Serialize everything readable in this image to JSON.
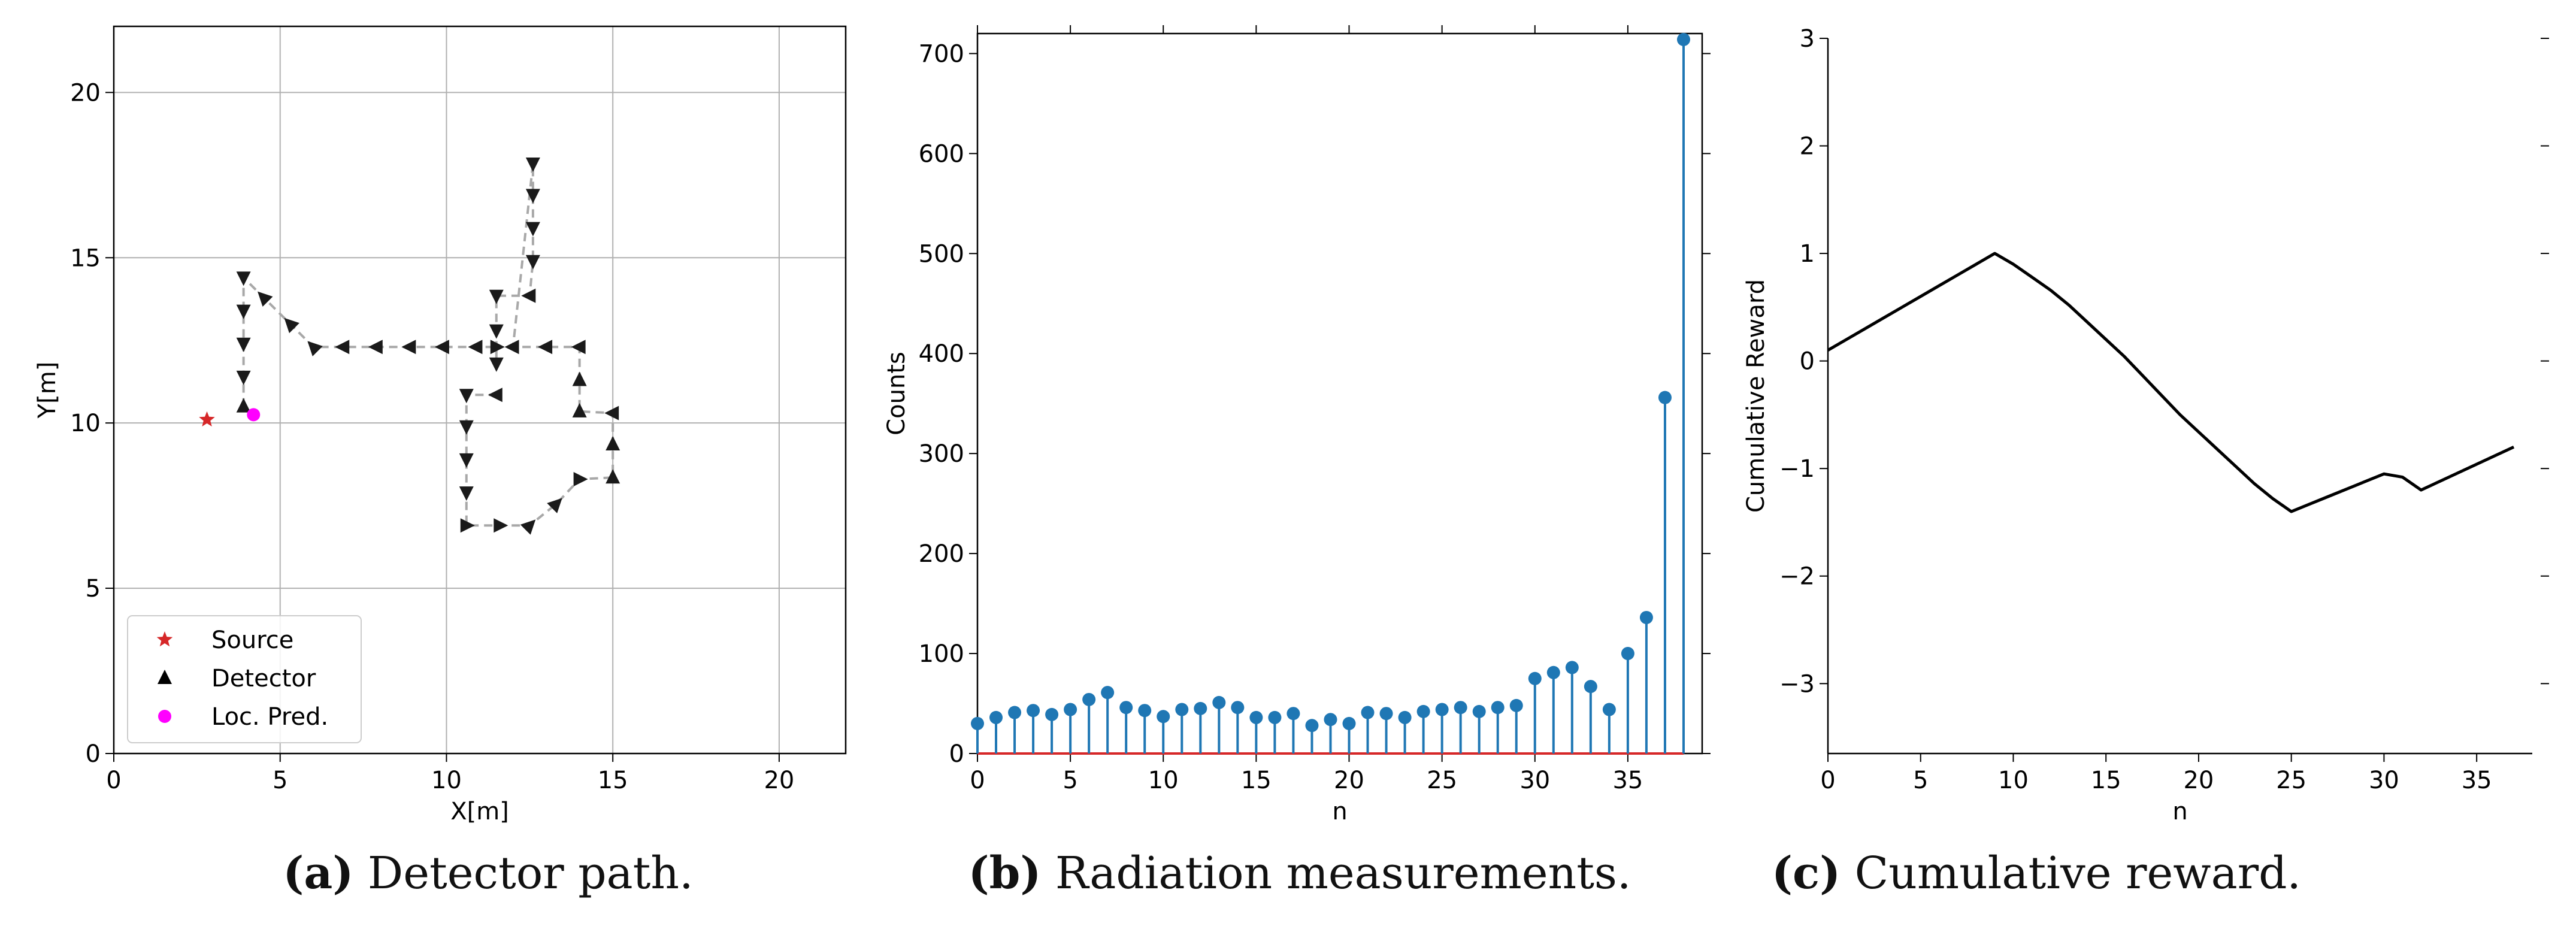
{
  "chart_data": [
    {
      "type": "scatter",
      "title": "",
      "xlabel": "X[m]",
      "ylabel": "Y[m]",
      "xlim": [
        0,
        22
      ],
      "ylim": [
        0,
        22
      ],
      "xticks": [
        0,
        5,
        10,
        15,
        20
      ],
      "yticks": [
        0,
        5,
        10,
        15,
        20
      ],
      "grid": true,
      "legend": {
        "placement": "lower-left",
        "entries": [
          {
            "label": "Source",
            "marker": "star",
            "color": "#d62728"
          },
          {
            "label": "Detector",
            "marker": "triangle",
            "color": "#000000"
          },
          {
            "label": "Loc. Pred.",
            "marker": "circle",
            "color": "#ff00ff"
          }
        ]
      },
      "source": {
        "x": 2.8,
        "y": 10.1
      },
      "loc_pred": {
        "x": 4.2,
        "y": 10.25
      },
      "detector_path": [
        {
          "x": 3.9,
          "y": 10.5,
          "dir": "up"
        },
        {
          "x": 3.9,
          "y": 11.4,
          "dir": "down"
        },
        {
          "x": 3.9,
          "y": 12.4,
          "dir": "down"
        },
        {
          "x": 3.9,
          "y": 13.4,
          "dir": "down"
        },
        {
          "x": 3.9,
          "y": 14.4,
          "dir": "down"
        },
        {
          "x": 4.5,
          "y": 13.8,
          "dir": "up-left"
        },
        {
          "x": 5.3,
          "y": 13.0,
          "dir": "up-left"
        },
        {
          "x": 6.0,
          "y": 12.3,
          "dir": "up-left"
        },
        {
          "x": 6.9,
          "y": 12.3,
          "dir": "left"
        },
        {
          "x": 7.9,
          "y": 12.3,
          "dir": "left"
        },
        {
          "x": 8.9,
          "y": 12.3,
          "dir": "left"
        },
        {
          "x": 9.9,
          "y": 12.3,
          "dir": "left"
        },
        {
          "x": 10.9,
          "y": 12.3,
          "dir": "left"
        },
        {
          "x": 11.5,
          "y": 12.3,
          "dir": "right"
        },
        {
          "x": 11.5,
          "y": 11.8,
          "dir": "down"
        },
        {
          "x": 11.5,
          "y": 12.8,
          "dir": "down"
        },
        {
          "x": 11.5,
          "y": 13.85,
          "dir": "down"
        },
        {
          "x": 12.5,
          "y": 13.85,
          "dir": "left"
        },
        {
          "x": 12.6,
          "y": 14.9,
          "dir": "down"
        },
        {
          "x": 12.6,
          "y": 15.9,
          "dir": "down"
        },
        {
          "x": 12.6,
          "y": 16.9,
          "dir": "down"
        },
        {
          "x": 12.6,
          "y": 17.85,
          "dir": "down"
        },
        {
          "x": 12.0,
          "y": 12.3,
          "dir": "left"
        },
        {
          "x": 13.0,
          "y": 12.3,
          "dir": "left"
        },
        {
          "x": 14.0,
          "y": 12.3,
          "dir": "left"
        },
        {
          "x": 14.0,
          "y": 11.3,
          "dir": "up"
        },
        {
          "x": 14.0,
          "y": 10.35,
          "dir": "up"
        },
        {
          "x": 15.0,
          "y": 10.3,
          "dir": "left"
        },
        {
          "x": 15.0,
          "y": 9.35,
          "dir": "up"
        },
        {
          "x": 15.0,
          "y": 8.35,
          "dir": "up"
        },
        {
          "x": 14.0,
          "y": 8.3,
          "dir": "right"
        },
        {
          "x": 13.3,
          "y": 7.55,
          "dir": "up-right"
        },
        {
          "x": 12.5,
          "y": 6.9,
          "dir": "up-right"
        },
        {
          "x": 11.6,
          "y": 6.9,
          "dir": "right"
        },
        {
          "x": 10.6,
          "y": 6.9,
          "dir": "right"
        },
        {
          "x": 10.6,
          "y": 7.9,
          "dir": "down"
        },
        {
          "x": 10.6,
          "y": 8.9,
          "dir": "down"
        },
        {
          "x": 10.6,
          "y": 9.9,
          "dir": "down"
        },
        {
          "x": 10.6,
          "y": 10.85,
          "dir": "down"
        },
        {
          "x": 11.5,
          "y": 10.85,
          "dir": "left"
        }
      ]
    },
    {
      "type": "bar",
      "subtype": "stem",
      "title": "",
      "xlabel": "n",
      "ylabel": "Counts",
      "xlim": [
        0,
        39
      ],
      "ylim": [
        0,
        720
      ],
      "xticks": [
        0,
        5,
        10,
        15,
        20,
        25,
        30,
        35
      ],
      "yticks": [
        0,
        100,
        200,
        300,
        400,
        500,
        600,
        700
      ],
      "grid": false,
      "x": [
        0,
        1,
        2,
        3,
        4,
        5,
        6,
        7,
        8,
        9,
        10,
        11,
        12,
        13,
        14,
        15,
        16,
        17,
        18,
        19,
        20,
        21,
        22,
        23,
        24,
        25,
        26,
        27,
        28,
        29,
        30,
        31,
        32,
        33,
        34,
        35,
        36,
        37,
        38
      ],
      "values": [
        30,
        36,
        41,
        43,
        39,
        44,
        54,
        61,
        46,
        43,
        37,
        44,
        45,
        51,
        46,
        36,
        36,
        40,
        28,
        34,
        30,
        41,
        40,
        36,
        42,
        44,
        46,
        42,
        46,
        48,
        75,
        81,
        86,
        67,
        44,
        100,
        136,
        356,
        714
      ],
      "color": "#1f77b4",
      "baseline_color": "#d62728"
    },
    {
      "type": "line",
      "title": "",
      "xlabel": "n",
      "ylabel": "Cumulative Reward",
      "xlim": [
        0,
        38
      ],
      "ylim": [
        -3.65,
        3
      ],
      "xticks": [
        0,
        5,
        10,
        15,
        20,
        25,
        30,
        35
      ],
      "yticks": [
        -3,
        -2,
        -1,
        0,
        1,
        2,
        3
      ],
      "grid": false,
      "x": [
        0,
        1,
        2,
        3,
        4,
        5,
        6,
        7,
        8,
        9,
        10,
        11,
        12,
        13,
        14,
        15,
        16,
        17,
        18,
        19,
        20,
        21,
        22,
        23,
        24,
        25,
        26,
        27,
        28,
        29,
        30,
        31,
        32,
        33,
        34,
        35,
        36,
        37
      ],
      "values": [
        0.1,
        0.2,
        0.3,
        0.4,
        0.5,
        0.6,
        0.7,
        0.8,
        0.9,
        1.0,
        0.9,
        0.78,
        0.66,
        0.52,
        0.36,
        0.2,
        0.04,
        -0.14,
        -0.32,
        -0.5,
        -0.66,
        -0.82,
        -0.98,
        -1.14,
        -1.28,
        -1.4,
        -1.33,
        -1.26,
        -1.19,
        -1.12,
        -1.05,
        -1.08,
        -1.2,
        -1.12,
        -1.04,
        -0.96,
        -0.88,
        -0.8
      ],
      "color": "#000000"
    }
  ],
  "captions": [
    {
      "letter": "(a)",
      "text": " Detector path."
    },
    {
      "letter": "(b)",
      "text": " Radiation measurements."
    },
    {
      "letter": "(c)",
      "text": " Cumulative reward."
    }
  ]
}
